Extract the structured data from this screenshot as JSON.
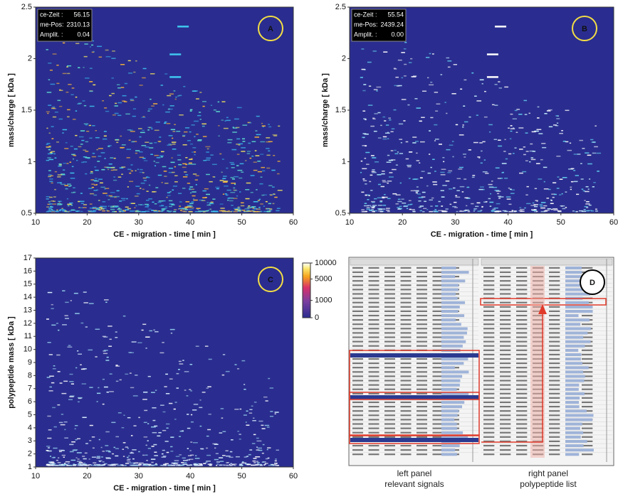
{
  "chart_data": [
    {
      "type": "heatmap",
      "panel_label": "A",
      "xlabel": "CE - migration - time  [ min ]",
      "ylabel": "mass/charge  [ kDa ]",
      "xlim": [
        10,
        60
      ],
      "ylim": [
        0.5,
        2.5
      ],
      "xticks": [
        10,
        20,
        30,
        40,
        50,
        60
      ],
      "yticks": [
        0.5,
        1,
        1.5,
        2,
        2.5
      ],
      "readout": [
        [
          "ce-Zeit :",
          "56.15"
        ],
        [
          "me-Pos:",
          "2310.13"
        ],
        [
          "Amplit. :",
          "0.04"
        ]
      ]
    },
    {
      "type": "heatmap",
      "panel_label": "B",
      "xlabel": "CE - migration - time  [ min ]",
      "ylabel": "mass/charge  [ kDa ]",
      "xlim": [
        10,
        60
      ],
      "ylim": [
        0.5,
        2.5
      ],
      "xticks": [
        10,
        20,
        30,
        40,
        50,
        60
      ],
      "yticks": [
        0.5,
        1,
        1.5,
        2,
        2.5
      ],
      "readout": [
        [
          "ce-Zeit :",
          "55.54"
        ],
        [
          "me-Pos:",
          "2439.24"
        ],
        [
          "Amplit. :",
          "0.00"
        ]
      ]
    },
    {
      "type": "heatmap",
      "panel_label": "C",
      "xlabel": "CE - migration - time  [ min ]",
      "ylabel": "polypeptide mass  [ kDa ]",
      "xlim": [
        10,
        60
      ],
      "ylim": [
        1,
        17
      ],
      "xticks": [
        10,
        20,
        30,
        40,
        50,
        60
      ],
      "yticks": [
        1,
        2,
        3,
        4,
        5,
        6,
        7,
        8,
        9,
        10,
        11,
        12,
        13,
        14,
        15,
        16,
        17
      ]
    }
  ],
  "colorbar": {
    "lim": [
      0,
      10000
    ],
    "ticks": [
      0,
      1000,
      5000,
      10000
    ],
    "scale": "sqrt"
  },
  "panel_d": {
    "label": "D",
    "left_caption": [
      "left panel",
      "relevant signals"
    ],
    "right_caption": [
      "right panel",
      "polypeptide list"
    ]
  }
}
